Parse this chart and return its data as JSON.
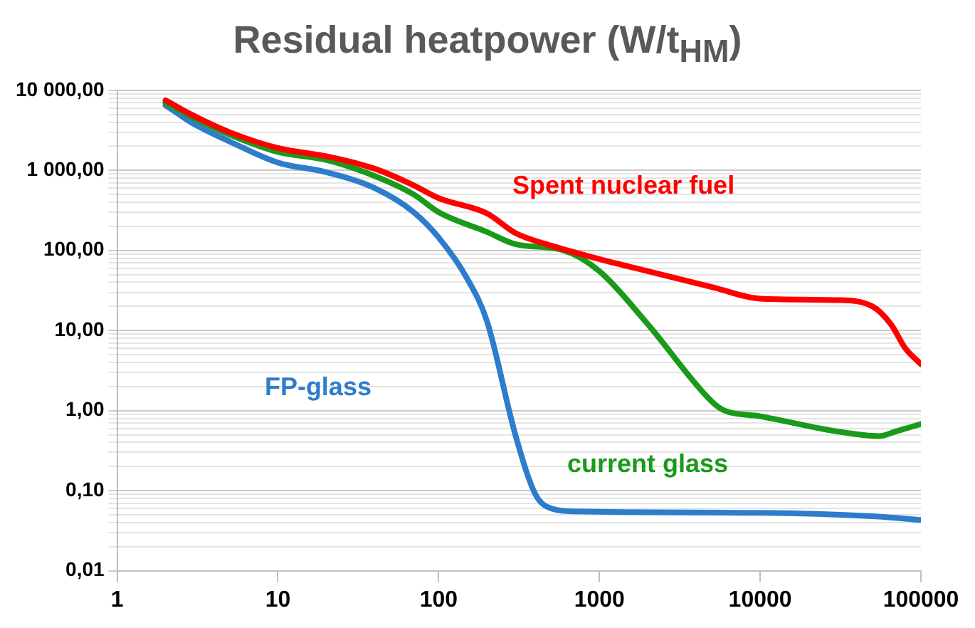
{
  "chart_data": {
    "type": "line",
    "title": "Residual heatpower (W/t$_{HM}$)",
    "log": "xy",
    "grid": "y",
    "legend": false,
    "marker": "none",
    "line_style": "solid",
    "xlim": [
      1,
      100000
    ],
    "xticks": [
      1,
      10,
      100,
      1000,
      10000,
      100000
    ],
    "ylim": [
      0.01,
      10000
    ],
    "yticks": [
      {
        "value": 0.01,
        "label": "0,01"
      },
      {
        "value": 0.02,
        "label": null
      },
      {
        "value": 0.03,
        "label": null
      },
      {
        "value": 0.04,
        "label": null
      },
      {
        "value": 0.05,
        "label": null
      },
      {
        "value": 0.06,
        "label": null
      },
      {
        "value": 0.07,
        "label": null
      },
      {
        "value": 0.08,
        "label": null
      },
      {
        "value": 0.09,
        "label": null
      },
      {
        "value": 0.1,
        "label": "0,10"
      },
      {
        "value": 0.2,
        "label": null
      },
      {
        "value": 0.3,
        "label": null
      },
      {
        "value": 0.4,
        "label": null
      },
      {
        "value": 0.5,
        "label": null
      },
      {
        "value": 0.6,
        "label": null
      },
      {
        "value": 0.7,
        "label": null
      },
      {
        "value": 0.8,
        "label": null
      },
      {
        "value": 0.9,
        "label": null
      },
      {
        "value": 1,
        "label": "1,00"
      },
      {
        "value": 2,
        "label": null
      },
      {
        "value": 3,
        "label": null
      },
      {
        "value": 4,
        "label": null
      },
      {
        "value": 5,
        "label": null
      },
      {
        "value": 6,
        "label": null
      },
      {
        "value": 7,
        "label": null
      },
      {
        "value": 8,
        "label": null
      },
      {
        "value": 9,
        "label": null
      },
      {
        "value": 10,
        "label": "10,00"
      },
      {
        "value": 20,
        "label": null
      },
      {
        "value": 30,
        "label": null
      },
      {
        "value": 40,
        "label": null
      },
      {
        "value": 50,
        "label": null
      },
      {
        "value": 60,
        "label": null
      },
      {
        "value": 70,
        "label": null
      },
      {
        "value": 80,
        "label": null
      },
      {
        "value": 90,
        "label": null
      },
      {
        "value": 100,
        "label": "100,00"
      },
      {
        "value": 200,
        "label": null
      },
      {
        "value": 300,
        "label": null
      },
      {
        "value": 400,
        "label": null
      },
      {
        "value": 500,
        "label": null
      },
      {
        "value": 600,
        "label": null
      },
      {
        "value": 700,
        "label": null
      },
      {
        "value": 800,
        "label": null
      },
      {
        "value": 900,
        "label": null
      },
      {
        "value": 1000,
        "label": "1 000,00"
      },
      {
        "value": 2000,
        "label": null
      },
      {
        "value": 3000,
        "label": null
      },
      {
        "value": 4000,
        "label": null
      },
      {
        "value": 5000,
        "label": null
      },
      {
        "value": 6000,
        "label": null
      },
      {
        "value": 7000,
        "label": null
      },
      {
        "value": 8000,
        "label": null
      },
      {
        "value": 9000,
        "label": null
      },
      {
        "value": 10000,
        "label": "10 000,00"
      }
    ],
    "series": [
      {
        "name": "Spent nuclear fuel",
        "color": "#ff0000",
        "x": [
          2,
          3,
          5,
          10,
          20,
          40,
          70,
          100,
          200,
          300,
          500,
          1000,
          2000,
          5000,
          10000,
          30000,
          50000,
          65000,
          80000,
          100000
        ],
        "values": [
          7500,
          4800,
          3000,
          1900,
          1500,
          1050,
          650,
          450,
          290,
          165,
          115,
          78,
          55,
          35,
          25,
          24,
          20,
          12,
          6,
          3.8
        ]
      },
      {
        "name": "current glass",
        "color": "#1a9a1a",
        "x": [
          2,
          3,
          5,
          10,
          20,
          40,
          70,
          100,
          200,
          300,
          600,
          1000,
          2000,
          5000,
          6000,
          10000,
          30000,
          55000,
          70000,
          100000
        ],
        "values": [
          7000,
          4500,
          2800,
          1700,
          1350,
          850,
          500,
          300,
          170,
          120,
          100,
          55,
          12,
          1.3,
          1,
          0.85,
          0.55,
          0.48,
          0.55,
          0.68
        ]
      },
      {
        "name": "FP-glass",
        "color": "#2e7dcc",
        "x": [
          2,
          3,
          5,
          10,
          20,
          40,
          70,
          100,
          150,
          200,
          300,
          400,
          500,
          700,
          10000,
          50000,
          100000
        ],
        "values": [
          6500,
          3800,
          2300,
          1250,
          950,
          600,
          300,
          145,
          45,
          13,
          0.5,
          0.09,
          0.06,
          0.055,
          0.053,
          0.048,
          0.043
        ]
      }
    ]
  }
}
